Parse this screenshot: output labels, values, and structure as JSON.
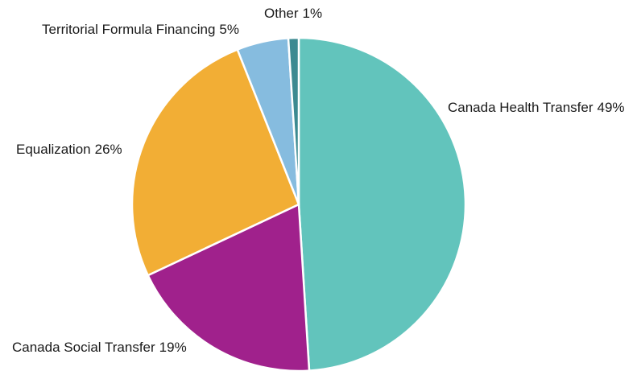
{
  "chart_data": {
    "type": "pie",
    "categories": [
      "Canada Health Transfer",
      "Canada Social Transfer",
      "Equalization",
      "Territorial Formula Financing",
      "Other"
    ],
    "values": [
      49,
      19,
      26,
      5,
      1
    ],
    "value_labels": [
      "49%",
      "19%",
      "26%",
      "5%",
      "1%"
    ],
    "colors": [
      "#62c4bc",
      "#a0218c",
      "#f2ae35",
      "#86bcdf",
      "#3c8a91"
    ]
  }
}
